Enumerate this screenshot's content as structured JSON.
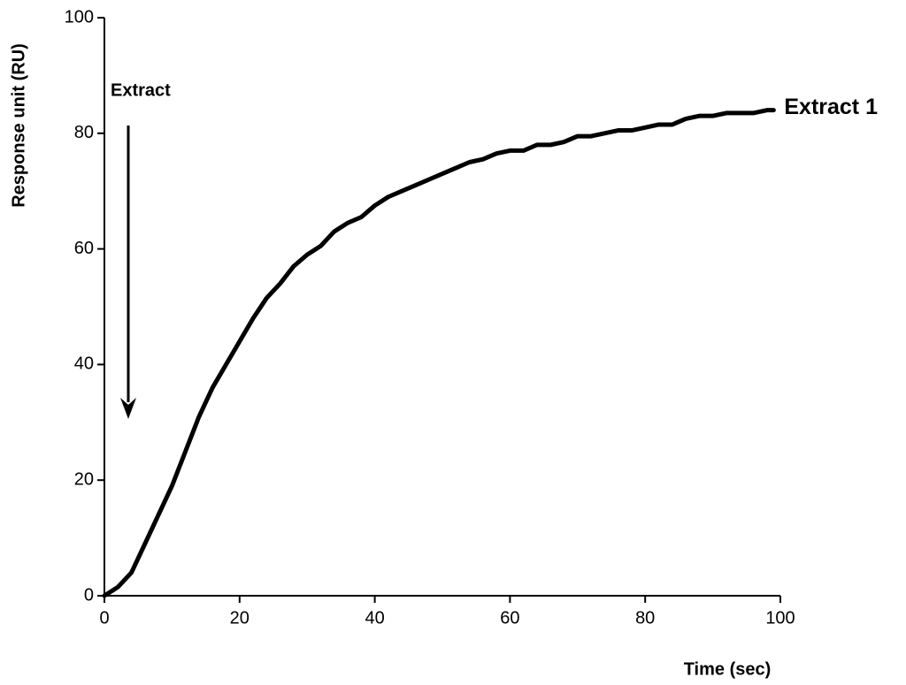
{
  "chart_data": {
    "type": "line",
    "xlabel": "Time (sec)",
    "ylabel": "Response unit (RU)",
    "annotation": "Extract",
    "xlim": [
      0,
      100
    ],
    "ylim": [
      0,
      100
    ],
    "xticks": [
      0,
      20,
      40,
      60,
      80,
      100
    ],
    "yticks": [
      0,
      20,
      40,
      60,
      80,
      100
    ],
    "grid": false,
    "x": [
      0,
      2,
      4,
      6,
      8,
      10,
      12,
      14,
      16,
      18,
      20,
      22,
      24,
      26,
      28,
      30,
      32,
      34,
      36,
      38,
      40,
      42,
      44,
      46,
      48,
      50,
      52,
      54,
      56,
      58,
      60,
      62,
      64,
      66,
      68,
      70,
      72,
      74,
      76,
      78,
      80,
      82,
      84,
      86,
      88,
      90,
      92,
      94,
      96,
      98,
      99
    ],
    "series": [
      {
        "name": "Extract 1",
        "color": "#000000",
        "values": [
          0,
          1.5,
          4,
          9,
          14,
          19,
          25,
          31,
          36,
          40,
          44,
          48,
          51.5,
          54,
          57,
          59,
          60.5,
          63,
          64.5,
          65.5,
          67.5,
          69,
          70,
          71,
          72,
          73,
          74,
          75,
          75.5,
          76.5,
          77,
          77,
          78,
          78,
          78.5,
          79.5,
          79.5,
          80,
          80.5,
          80.5,
          81,
          81.5,
          81.5,
          82.5,
          83,
          83,
          83.5,
          83.5,
          83.5,
          84,
          84
        ]
      }
    ]
  }
}
